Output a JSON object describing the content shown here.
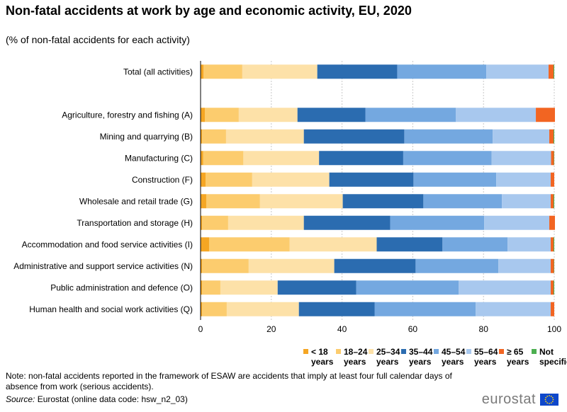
{
  "header": {
    "title": "Non-fatal accidents at work by age and economic activity, EU, 2020",
    "subtitle": "(% of non-fatal accidents for each activity)"
  },
  "footer": {
    "note": "Note: non-fatal accidents reported in the framework of ESAW are accidents that imply at least four full calendar days of absence from work (serious accidents).",
    "source_label": "Source:",
    "source_text": "Eurostat (online data code: hsw_n2_03)",
    "logo_text": "eurostat"
  },
  "legend_labels": [
    {
      "line1": "< 18",
      "line2": "years"
    },
    {
      "line1": "18–24",
      "line2": "years"
    },
    {
      "line1": "25–34",
      "line2": "years"
    },
    {
      "line1": "35–44",
      "line2": "years"
    },
    {
      "line1": "45–54",
      "line2": "years"
    },
    {
      "line1": "55–64",
      "line2": "years"
    },
    {
      "line1": "≥ 65",
      "line2": "years"
    },
    {
      "line1": "Not",
      "line2": "specified"
    }
  ],
  "chart_data": {
    "type": "bar",
    "orientation": "horizontal",
    "stacked": true,
    "title": "Non-fatal accidents at work by age and economic activity, EU, 2020",
    "subtitle": "(% of non-fatal accidents for each activity)",
    "xlim": [
      0,
      100
    ],
    "xticks": [
      0,
      20,
      40,
      60,
      80,
      100
    ],
    "grid": "vertical",
    "legend_position": "bottom-right",
    "categories": [
      "Total (all activities)",
      "",
      "Agriculture, forestry and fishing (A)",
      "Mining and quarrying (B)",
      "Manufacturing (C)",
      "Construction (F)",
      "Wholesale and retail trade (G)",
      "Transportation and storage (H)",
      "Accommodation and food service activities (I)",
      "Administrative and support service activities (N)",
      "Public administration and defence (O)",
      "Human health and social work activities (Q)"
    ],
    "series": [
      {
        "name": "< 18 years",
        "color": "#f5a623",
        "values": [
          0.8,
          null,
          1.2,
          0.4,
          0.7,
          1.4,
          1.6,
          0.4,
          2.4,
          0.4,
          0.4,
          0.4
        ]
      },
      {
        "name": "18–24 years",
        "color": "#fccc6e",
        "values": [
          11.0,
          null,
          9.6,
          6.8,
          11.4,
          13.2,
          15.2,
          7.4,
          22.8,
          13.2,
          5.2,
          7.0
        ]
      },
      {
        "name": "25–34 years",
        "color": "#fde1a8",
        "values": [
          21.2,
          null,
          16.6,
          22.0,
          21.4,
          21.8,
          23.4,
          21.4,
          24.6,
          24.2,
          16.2,
          20.4
        ]
      },
      {
        "name": "35–44 years",
        "color": "#2b6cb0",
        "values": [
          22.6,
          null,
          19.2,
          28.4,
          23.8,
          23.8,
          22.8,
          24.4,
          18.6,
          23.0,
          22.2,
          21.4
        ]
      },
      {
        "name": "45–54 years",
        "color": "#74a8e0",
        "values": [
          25.2,
          null,
          25.6,
          25.0,
          25.0,
          23.4,
          22.2,
          26.6,
          18.4,
          23.4,
          29.0,
          28.6
        ]
      },
      {
        "name": "55–64 years",
        "color": "#a8c8ee",
        "values": [
          17.6,
          null,
          22.6,
          16.0,
          16.8,
          15.4,
          13.8,
          18.4,
          12.2,
          14.8,
          26.0,
          21.2
        ]
      },
      {
        "name": "≥ 65 years",
        "color": "#f26522",
        "values": [
          1.4,
          null,
          5.4,
          1.2,
          0.8,
          1.0,
          0.8,
          1.6,
          0.8,
          0.9,
          0.8,
          1.0
        ]
      },
      {
        "name": "Not specified",
        "color": "#4caf50",
        "values": [
          0.2,
          null,
          0.0,
          0.2,
          0.1,
          0.0,
          0.2,
          0.0,
          0.2,
          0.1,
          0.2,
          0.0
        ]
      }
    ]
  }
}
